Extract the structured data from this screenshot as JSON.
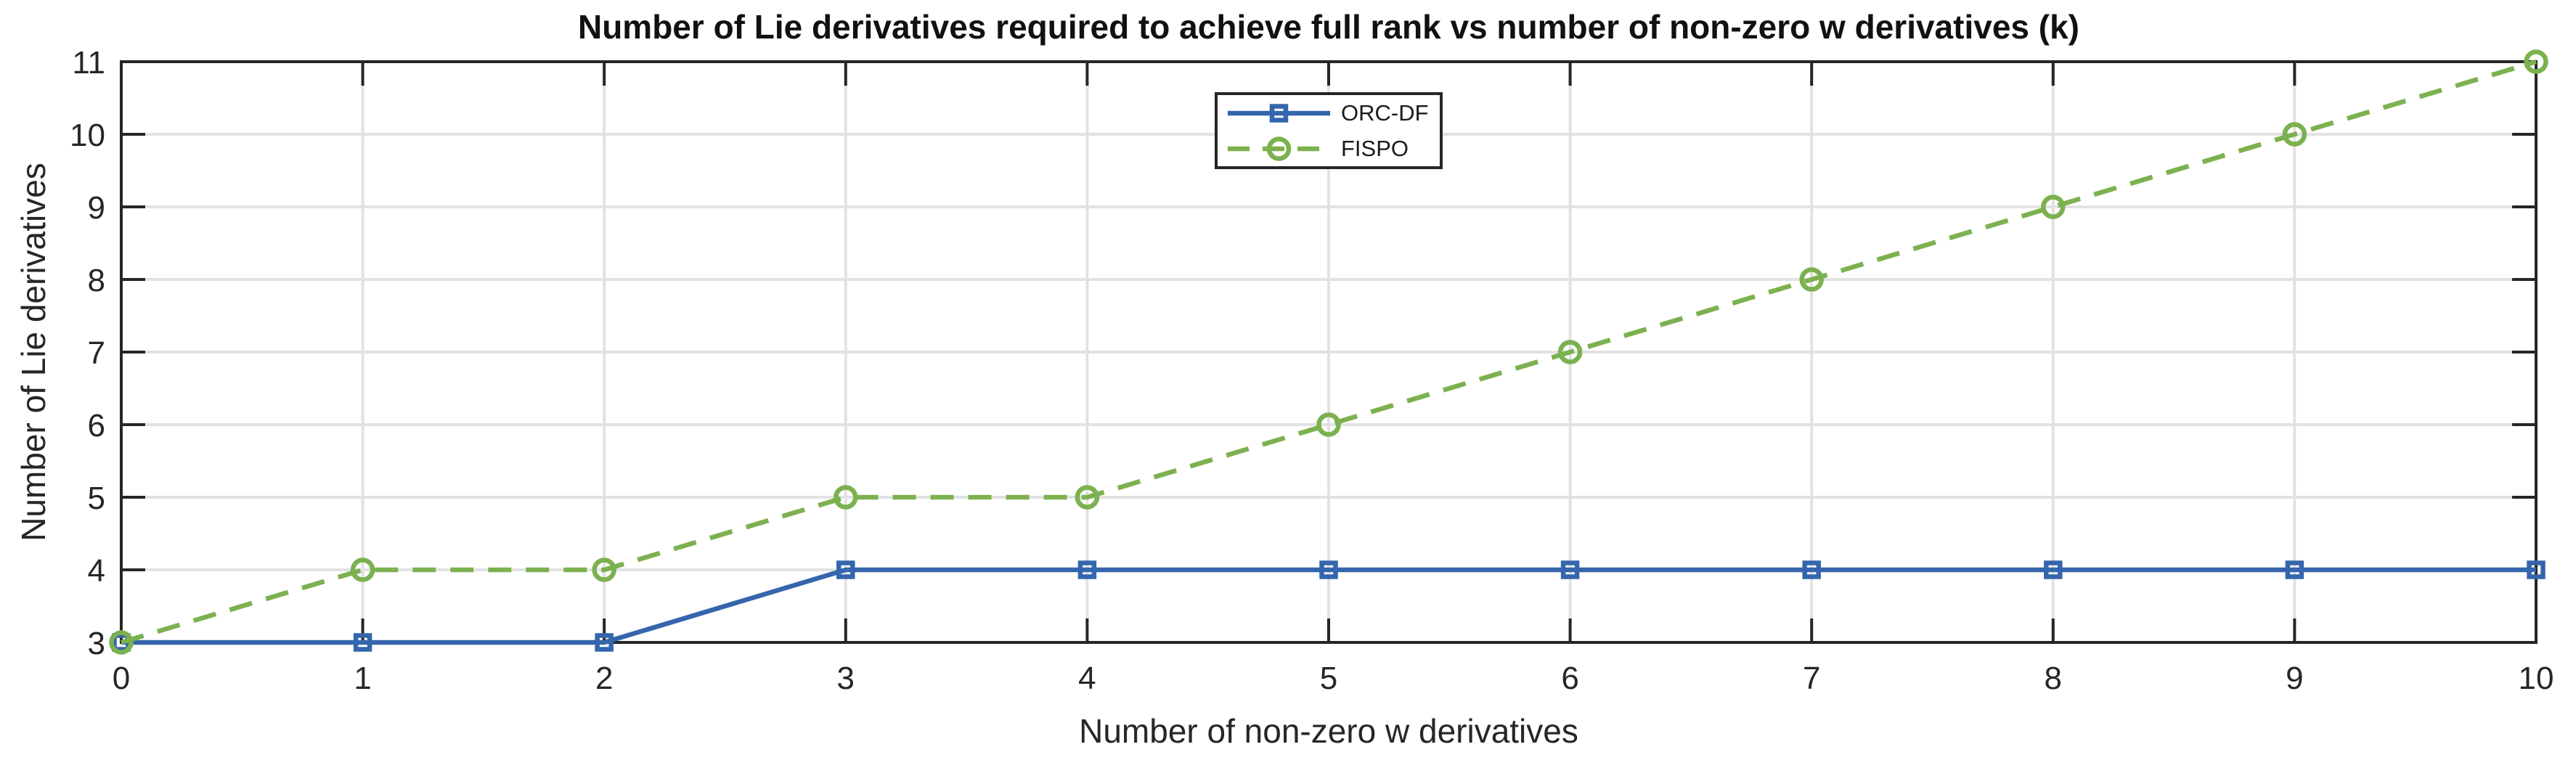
{
  "figure": {
    "title": "Number of Lie derivatives required to achieve full rank vs number of non-zero w derivatives (k)",
    "xlabel": "Number of non-zero w derivatives",
    "ylabel": "Number of Lie derivatives"
  },
  "colors": {
    "background": "#ffffff",
    "axis": "#262626",
    "grid": "#e2e2e2",
    "title_text": "#111111",
    "tick_text": "#262626",
    "legend_text": "#1a1a1a",
    "orc_df_blue": "#3566ad",
    "fispo_green": "#7cb14f"
  },
  "chart_data": {
    "type": "line",
    "title": "Number of Lie derivatives required to achieve full rank vs number of non-zero w derivatives (k)",
    "xlabel": "Number of non-zero w derivatives",
    "ylabel": "Number of Lie derivatives",
    "x": [
      0,
      1,
      2,
      3,
      4,
      5,
      6,
      7,
      8,
      9,
      10
    ],
    "series": [
      {
        "name": "ORC-DF",
        "values": [
          3,
          3,
          3,
          4,
          4,
          4,
          4,
          4,
          4,
          4,
          4
        ],
        "color": "#3566ad",
        "line_style": "solid",
        "marker": "square"
      },
      {
        "name": "FISPO",
        "values": [
          3,
          4,
          4,
          5,
          5,
          6,
          7,
          8,
          9,
          10,
          11
        ],
        "color": "#7cb14f",
        "line_style": "dashed",
        "marker": "circle"
      }
    ],
    "xlim": [
      0,
      10
    ],
    "ylim": [
      3,
      11
    ],
    "x_ticks": [
      0,
      1,
      2,
      3,
      4,
      5,
      6,
      7,
      8,
      9,
      10
    ],
    "y_ticks": [
      3,
      4,
      5,
      6,
      7,
      8,
      9,
      10,
      11
    ],
    "grid": true,
    "box": true,
    "legend_position": "north"
  }
}
